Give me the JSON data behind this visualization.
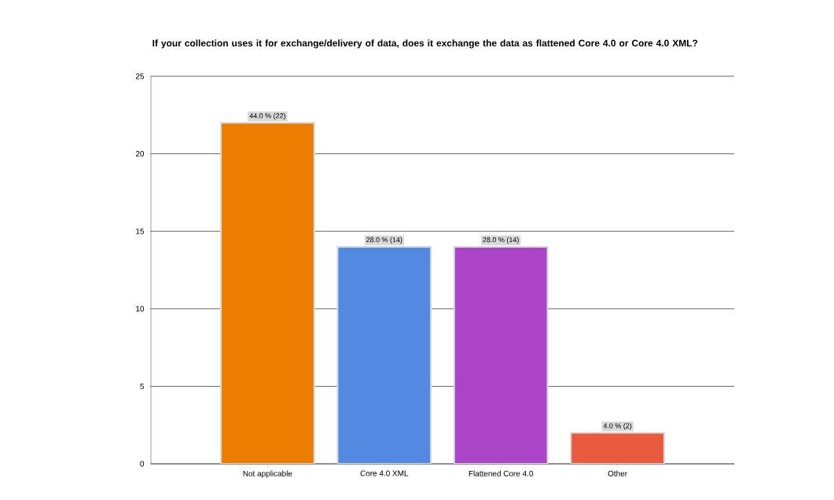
{
  "chart_data": {
    "type": "bar",
    "title": "If your collection uses it for exchange/delivery of data, does it exchange the data as flattened Core 4.0 or Core 4.0 XML?",
    "categories": [
      "Not applicable",
      "Core 4.0 XML",
      "Flattened Core 4.0",
      "Other"
    ],
    "values": [
      22,
      14,
      14,
      2
    ],
    "colors": [
      "#ec7d00",
      "#5389e0",
      "#aa45c8",
      "#ea5a3c"
    ],
    "value_labels": [
      "44.0 % (22)",
      "28.0 % (14)",
      "28.0 % (14)",
      "4.0 % (2)"
    ],
    "ylim": [
      0,
      25
    ],
    "yticks": [
      0,
      5,
      10,
      15,
      20,
      25
    ],
    "grid": "y"
  }
}
